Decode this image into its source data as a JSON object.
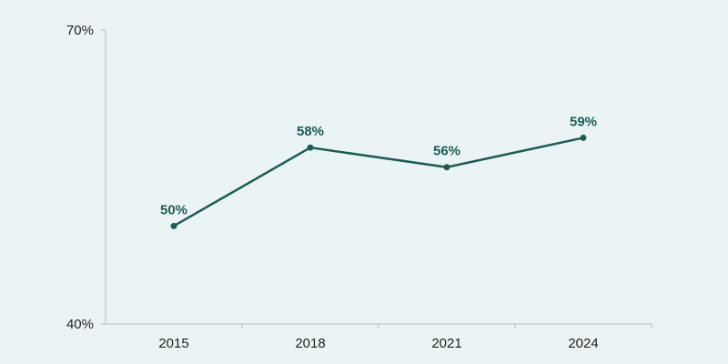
{
  "chart_data": {
    "type": "line",
    "x": [
      "2015",
      "2018",
      "2021",
      "2024"
    ],
    "series": [
      {
        "values": [
          50,
          58,
          56,
          59
        ],
        "labels": [
          "50%",
          "58%",
          "56%",
          "59%"
        ]
      }
    ],
    "ylim": [
      40,
      70
    ],
    "y_ticks": [
      {
        "value": 70,
        "label": "70%"
      },
      {
        "value": 40,
        "label": "40%"
      }
    ],
    "grid": false,
    "title": "",
    "xlabel": "",
    "ylabel": ""
  },
  "colors": {
    "background": "#eaf4f4",
    "series": "#1f5b54",
    "axis": "#b8bec0",
    "text": "#1f1f1f"
  }
}
